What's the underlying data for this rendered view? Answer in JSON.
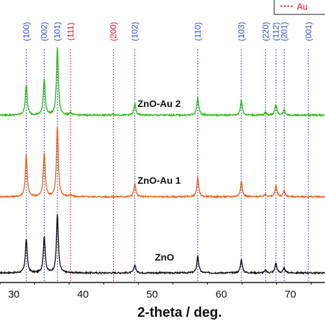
{
  "chart_data": {
    "type": "line",
    "xlabel": "2-theta / deg.",
    "xlim": [
      28,
      75
    ],
    "x_ticks": [
      30,
      40,
      50,
      60,
      70
    ],
    "legend": {
      "items": [
        {
          "name": "Au",
          "color": "#e8102a",
          "style": "dashed"
        }
      ],
      "placement": "top-right"
    },
    "reference_lines": [
      {
        "label": "(100)",
        "x": 31.8,
        "phase": "ZnO",
        "color": "#2b4bd6"
      },
      {
        "label": "(002)",
        "x": 34.4,
        "phase": "ZnO",
        "color": "#2b4bd6"
      },
      {
        "label": "(101)",
        "x": 36.3,
        "phase": "ZnO",
        "color": "#2b4bd6"
      },
      {
        "label": "(111)",
        "x": 38.2,
        "phase": "Au",
        "color": "#e8102a"
      },
      {
        "label": "(200)",
        "x": 44.4,
        "phase": "Au",
        "color": "#e8102a"
      },
      {
        "label": "(102)",
        "x": 47.5,
        "phase": "ZnO",
        "color": "#2b4bd6"
      },
      {
        "label": "(110)",
        "x": 56.6,
        "phase": "ZnO",
        "color": "#2b4bd6"
      },
      {
        "label": "(103)",
        "x": 62.9,
        "phase": "ZnO",
        "color": "#2b4bd6"
      },
      {
        "label": "(220)",
        "x": 66.4,
        "phase": "ZnO",
        "color": "#2b4bd6"
      },
      {
        "label": "(112)",
        "x": 67.9,
        "phase": "ZnO",
        "color": "#2b4bd6"
      },
      {
        "label": "(201)",
        "x": 69.1,
        "phase": "ZnO",
        "color": "#2b4bd6"
      },
      {
        "label": "(001)",
        "x": 72.6,
        "phase": "ZnO",
        "color": "#2b4bd6"
      }
    ],
    "series": [
      {
        "name": "ZnO",
        "color": "#111111",
        "baseline": 0,
        "peaks": [
          {
            "x": 31.8,
            "height": 58
          },
          {
            "x": 34.4,
            "height": 62
          },
          {
            "x": 36.3,
            "height": 100
          },
          {
            "x": 47.5,
            "height": 14
          },
          {
            "x": 56.6,
            "height": 29
          },
          {
            "x": 62.9,
            "height": 23
          },
          {
            "x": 66.4,
            "height": 4
          },
          {
            "x": 67.9,
            "height": 17
          },
          {
            "x": 69.1,
            "height": 8
          }
        ]
      },
      {
        "name": "ZnO-Au 1",
        "color": "#e8661c",
        "baseline": 115,
        "peaks": [
          {
            "x": 31.8,
            "height": 60
          },
          {
            "x": 34.4,
            "height": 63
          },
          {
            "x": 36.3,
            "height": 100
          },
          {
            "x": 38.2,
            "height": 3
          },
          {
            "x": 47.5,
            "height": 19
          },
          {
            "x": 56.6,
            "height": 27
          },
          {
            "x": 62.9,
            "height": 22
          },
          {
            "x": 66.4,
            "height": 4
          },
          {
            "x": 67.9,
            "height": 16
          },
          {
            "x": 69.1,
            "height": 9
          }
        ]
      },
      {
        "name": "ZnO-Au 2",
        "color": "#2cba16",
        "baseline": 200,
        "peaks": [
          {
            "x": 31.8,
            "height": 46
          },
          {
            "x": 34.4,
            "height": 53
          },
          {
            "x": 36.3,
            "height": 100
          },
          {
            "x": 38.2,
            "height": 4
          },
          {
            "x": 44.4,
            "height": 2
          },
          {
            "x": 47.5,
            "height": 17
          },
          {
            "x": 56.6,
            "height": 27
          },
          {
            "x": 62.9,
            "height": 22
          },
          {
            "x": 66.4,
            "height": 4
          },
          {
            "x": 67.9,
            "height": 16
          },
          {
            "x": 69.1,
            "height": 8
          }
        ]
      }
    ],
    "annotations": [
      "ZnO-Au 2",
      "ZnO-Au 1",
      "ZnO"
    ]
  }
}
